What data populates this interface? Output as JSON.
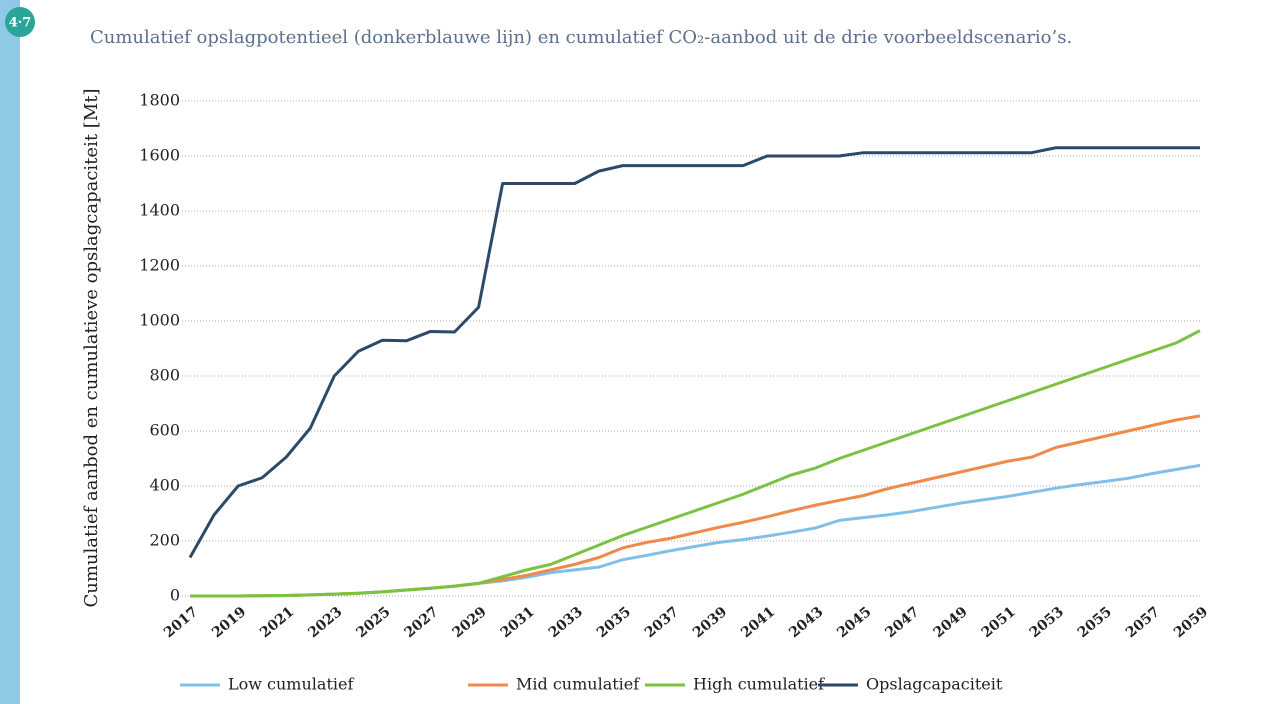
{
  "badge": "4·7",
  "chart_data": {
    "type": "line",
    "title": "Cumulatief opslagpotentieel (donkerblauwe lijn) en cumulatief CO₂-aanbod uit de drie voorbeeldscenario’s.",
    "y_label": "Cumulatief aanbod en cumulatieve opslagcapaciteit [Mt]",
    "categories": [
      "2017",
      null,
      "2019",
      null,
      "2021",
      null,
      "2023",
      null,
      "2025",
      null,
      "2027",
      null,
      "2029",
      null,
      "2031",
      null,
      "2033",
      null,
      "2035",
      null,
      "2037",
      null,
      "2039",
      null,
      "2041",
      null,
      "2043",
      null,
      "2045",
      null,
      "2047",
      null,
      "2049",
      null,
      "2051",
      null,
      "2053",
      null,
      "2055",
      null,
      "2057",
      null,
      "2059"
    ],
    "series": [
      {
        "name": "Low cumulatief",
        "color": "#7fbfe8",
        "values": [
          0,
          0,
          0,
          1,
          2,
          4,
          7,
          10,
          15,
          22,
          28,
          36,
          46,
          55,
          68,
          85,
          95,
          105,
          132,
          148,
          165,
          180,
          195,
          205,
          218,
          232,
          247,
          275,
          285,
          295,
          307,
          322,
          337,
          350,
          362,
          377,
          392,
          405,
          416,
          428,
          445,
          460,
          475
        ]
      },
      {
        "name": "Mid cumulatief",
        "color": "#f08a4b",
        "values": [
          0,
          0,
          0,
          1,
          2,
          4,
          7,
          10,
          15,
          22,
          28,
          36,
          46,
          60,
          75,
          95,
          115,
          140,
          175,
          195,
          210,
          230,
          250,
          268,
          288,
          310,
          330,
          348,
          365,
          390,
          410,
          430,
          450,
          470,
          490,
          505,
          540,
          560,
          580,
          600,
          620,
          640,
          655
        ]
      },
      {
        "name": "High cumulatief",
        "color": "#7cc242",
        "values": [
          0,
          0,
          0,
          1,
          2,
          4,
          7,
          10,
          15,
          22,
          28,
          36,
          46,
          70,
          95,
          115,
          150,
          185,
          220,
          250,
          280,
          310,
          340,
          370,
          405,
          440,
          465,
          500,
          530,
          560,
          590,
          620,
          650,
          680,
          710,
          740,
          770,
          800,
          830,
          860,
          890,
          920,
          965
        ]
      },
      {
        "name": "Opslagcapaciteit",
        "color": "#2c4a68",
        "values": [
          140,
          295,
          400,
          430,
          505,
          610,
          800,
          890,
          930,
          928,
          962,
          960,
          1050,
          1500,
          1500,
          1500,
          1500,
          1545,
          1565,
          1565,
          1565,
          1565,
          1565,
          1565,
          1600,
          1600,
          1600,
          1600,
          1612,
          1612,
          1612,
          1612,
          1612,
          1612,
          1612,
          1612,
          1630,
          1630,
          1630,
          1630,
          1630,
          1630,
          1630
        ]
      }
    ],
    "ylim": [
      0,
      1800
    ],
    "yticks": [
      0,
      200,
      400,
      600,
      800,
      1000,
      1200,
      1400,
      1600,
      1800
    ],
    "grid": true
  }
}
